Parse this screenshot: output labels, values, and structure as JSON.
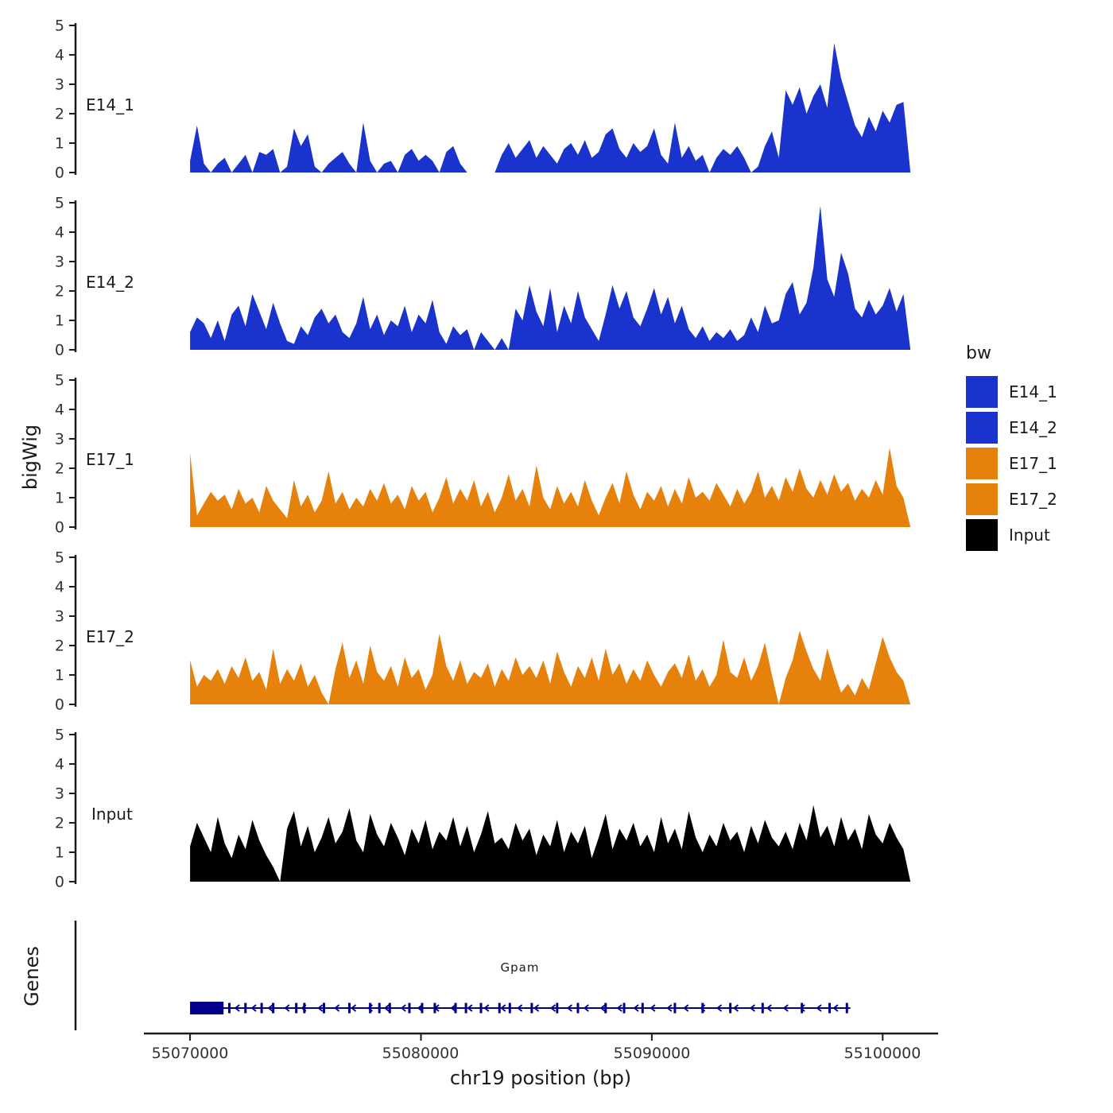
{
  "axis": {
    "y_title": "bigWig",
    "genes_title": "Genes",
    "x_title": "chr19 position (bp)",
    "x_domain": [
      55068000,
      55102400
    ],
    "y_tick_labels": [
      "0",
      "1",
      "2",
      "3",
      "4",
      "5"
    ],
    "x_ticks": [
      {
        "bp": 55070000,
        "label": "55070000"
      },
      {
        "bp": 55080000,
        "label": "55080000"
      },
      {
        "bp": 55090000,
        "label": "55090000"
      },
      {
        "bp": 55100000,
        "label": "55100000"
      }
    ]
  },
  "legend": {
    "title": "bw",
    "entries": [
      {
        "label": "E14_1",
        "color": "#1933CC"
      },
      {
        "label": "E14_2",
        "color": "#1933CC"
      },
      {
        "label": "E17_1",
        "color": "#E6820C"
      },
      {
        "label": "E17_2",
        "color": "#E6820C"
      },
      {
        "label": "Input",
        "color": "#000000"
      }
    ]
  },
  "chart_data": {
    "type": "area",
    "title": "",
    "xlabel": "chr19 position (bp)",
    "ylabel": "bigWig",
    "ylim": [
      0,
      5
    ],
    "x_start": 55070000,
    "x_step": 300,
    "series": [
      {
        "name": "E14_1",
        "color": "#1933CC",
        "values": [
          0.4,
          1.6,
          0.3,
          0,
          0.3,
          0.5,
          0,
          0.3,
          0.6,
          0,
          0.7,
          0.6,
          0.8,
          0,
          0.2,
          1.5,
          0.9,
          1.3,
          0.2,
          0,
          0.3,
          0.5,
          0.7,
          0.3,
          0,
          1.7,
          0.4,
          0,
          0.3,
          0.4,
          0,
          0.6,
          0.8,
          0.4,
          0.6,
          0.4,
          0,
          0.7,
          0.9,
          0.3,
          0,
          0,
          0,
          0,
          0,
          0.6,
          1.0,
          0.5,
          0.8,
          1.1,
          0.5,
          0.9,
          0.6,
          0.3,
          0.8,
          1.0,
          0.6,
          1.1,
          0.5,
          0.7,
          1.3,
          1.5,
          0.8,
          0.5,
          1.0,
          0.7,
          0.9,
          1.5,
          0.6,
          0.3,
          1.7,
          0.5,
          0.9,
          0.4,
          0.6,
          0,
          0.5,
          0.8,
          0.6,
          0.9,
          0.5,
          0,
          0.2,
          0.9,
          1.4,
          0.5,
          2.8,
          2.3,
          2.9,
          2.0,
          2.6,
          3.0,
          2.2,
          4.4,
          3.2,
          2.4,
          1.6,
          1.2,
          1.9,
          1.4,
          2.1,
          1.7,
          2.3,
          2.4,
          0
        ]
      },
      {
        "name": "E14_2",
        "color": "#1933CC",
        "values": [
          0.6,
          1.1,
          0.9,
          0.4,
          1.0,
          0.3,
          1.2,
          1.5,
          0.8,
          1.9,
          1.3,
          0.7,
          1.6,
          0.9,
          0.3,
          0.2,
          0.8,
          0.5,
          1.1,
          1.4,
          0.9,
          1.2,
          0.6,
          0.4,
          0.9,
          1.8,
          0.7,
          1.2,
          0.5,
          1.0,
          0.8,
          1.5,
          0.6,
          1.2,
          0.9,
          1.7,
          0.6,
          0.2,
          0.8,
          0.5,
          0.7,
          0,
          0.6,
          0.3,
          0,
          0.4,
          0,
          1.4,
          1.0,
          2.2,
          1.3,
          0.8,
          2.1,
          0.6,
          1.5,
          0.9,
          2.0,
          1.1,
          0.7,
          0.3,
          1.2,
          2.2,
          1.4,
          2.0,
          1.1,
          0.8,
          1.4,
          2.1,
          1.2,
          1.8,
          0.9,
          1.5,
          0.7,
          0.4,
          0.8,
          0.3,
          0.6,
          0.4,
          0.7,
          0.3,
          0.5,
          1.1,
          0.6,
          1.5,
          0.9,
          1.0,
          1.9,
          2.3,
          1.2,
          1.6,
          2.8,
          4.9,
          2.4,
          1.8,
          3.3,
          2.6,
          1.4,
          1.1,
          1.7,
          1.2,
          1.5,
          2.1,
          1.3,
          1.9,
          0
        ]
      },
      {
        "name": "E17_1",
        "color": "#E6820C",
        "values": [
          2.5,
          0.4,
          0.8,
          1.2,
          0.9,
          1.1,
          0.6,
          1.3,
          0.8,
          1.0,
          0.5,
          1.4,
          0.9,
          0.6,
          0.3,
          1.6,
          0.7,
          1.1,
          0.5,
          0.9,
          1.9,
          0.8,
          1.2,
          0.6,
          1.0,
          0.7,
          1.3,
          0.9,
          1.5,
          0.8,
          1.1,
          0.6,
          1.4,
          0.9,
          1.2,
          0.5,
          1.0,
          1.7,
          0.8,
          1.3,
          0.9,
          1.6,
          0.7,
          1.2,
          0.5,
          1.0,
          1.8,
          0.9,
          1.3,
          0.7,
          2.1,
          1.0,
          0.6,
          1.4,
          0.8,
          1.2,
          0.7,
          1.6,
          0.9,
          0.4,
          1.0,
          1.5,
          0.8,
          1.9,
          1.1,
          0.6,
          1.2,
          0.9,
          1.4,
          0.7,
          1.3,
          0.8,
          1.7,
          1.0,
          1.2,
          0.9,
          1.5,
          1.1,
          0.7,
          1.3,
          0.8,
          1.2,
          1.9,
          1.0,
          1.4,
          0.9,
          1.7,
          1.2,
          2.0,
          1.3,
          1.0,
          1.6,
          1.1,
          1.8,
          1.2,
          1.5,
          0.9,
          1.3,
          1.0,
          1.6,
          1.1,
          2.7,
          1.4,
          1.0,
          0
        ]
      },
      {
        "name": "E17_2",
        "color": "#E6820C",
        "values": [
          1.5,
          0.6,
          1.0,
          0.8,
          1.2,
          0.7,
          1.3,
          0.9,
          1.6,
          0.8,
          1.1,
          0.5,
          1.9,
          0.7,
          1.2,
          0.8,
          1.4,
          0.6,
          1.0,
          0.4,
          0,
          1.2,
          2.1,
          0.9,
          1.5,
          0.7,
          2.0,
          1.1,
          0.8,
          1.3,
          0.6,
          1.6,
          0.9,
          1.2,
          0.5,
          1.0,
          2.4,
          1.3,
          0.8,
          1.5,
          0.7,
          1.1,
          0.9,
          1.4,
          0.6,
          1.2,
          0.8,
          1.6,
          1.0,
          1.3,
          0.9,
          1.5,
          0.7,
          1.8,
          1.1,
          0.6,
          1.3,
          0.9,
          1.6,
          0.8,
          1.9,
          1.0,
          1.4,
          0.7,
          1.2,
          0.8,
          1.5,
          1.0,
          0.6,
          1.1,
          1.4,
          0.9,
          1.7,
          0.8,
          1.2,
          0.6,
          1.0,
          2.2,
          1.1,
          0.9,
          1.6,
          0.8,
          1.3,
          2.1,
          1.0,
          0,
          0.9,
          1.5,
          2.5,
          1.8,
          1.2,
          0.8,
          1.9,
          1.1,
          0.4,
          0.7,
          0.3,
          0.9,
          0.5,
          1.4,
          2.3,
          1.6,
          1.1,
          0.8,
          0
        ]
      },
      {
        "name": "Input",
        "color": "#000000",
        "values": [
          1.2,
          2.0,
          1.5,
          1.0,
          2.2,
          1.3,
          0.8,
          1.6,
          1.1,
          2.1,
          1.4,
          0.9,
          0.5,
          0,
          1.8,
          2.4,
          1.2,
          1.9,
          1.0,
          1.5,
          2.2,
          1.3,
          1.7,
          2.5,
          1.4,
          1.0,
          2.3,
          1.6,
          1.2,
          2.0,
          1.5,
          0.9,
          1.8,
          1.3,
          2.1,
          1.1,
          1.7,
          1.4,
          2.2,
          1.2,
          1.9,
          1.0,
          1.6,
          2.4,
          1.3,
          1.5,
          1.1,
          2.0,
          1.4,
          1.8,
          0.9,
          1.6,
          1.2,
          2.1,
          1.0,
          1.7,
          1.3,
          1.9,
          0.8,
          1.5,
          2.3,
          1.1,
          1.8,
          1.4,
          2.0,
          1.2,
          1.6,
          1.0,
          2.2,
          1.3,
          1.8,
          1.1,
          2.4,
          1.5,
          1.0,
          1.6,
          1.2,
          2.0,
          1.4,
          1.7,
          1.0,
          1.9,
          1.3,
          2.1,
          1.5,
          1.2,
          1.7,
          1.1,
          2.0,
          1.4,
          2.6,
          1.5,
          1.9,
          1.2,
          2.2,
          1.4,
          1.8,
          1.1,
          2.3,
          1.6,
          1.3,
          2.0,
          1.5,
          1.1,
          0
        ]
      }
    ]
  },
  "gene_track": {
    "color": "#00008B",
    "gene": {
      "name": "Gpam",
      "strand": "-",
      "start": 55070000,
      "end": 55098600,
      "thick_box": {
        "start": 55070000,
        "end": 55071450
      },
      "exons": [
        55071700,
        55072400,
        55073100,
        55073600,
        55074600,
        55074950,
        55075800,
        55076900,
        55077800,
        55078200,
        55078650,
        55079500,
        55080050,
        55080600,
        55081500,
        55081950,
        55082600,
        55083400,
        55083850,
        55084800,
        55085900,
        55086800,
        55088000,
        55088800,
        55089600,
        55091000,
        55092200,
        55093400,
        55094800,
        55096500,
        55097700,
        55098450
      ]
    }
  }
}
